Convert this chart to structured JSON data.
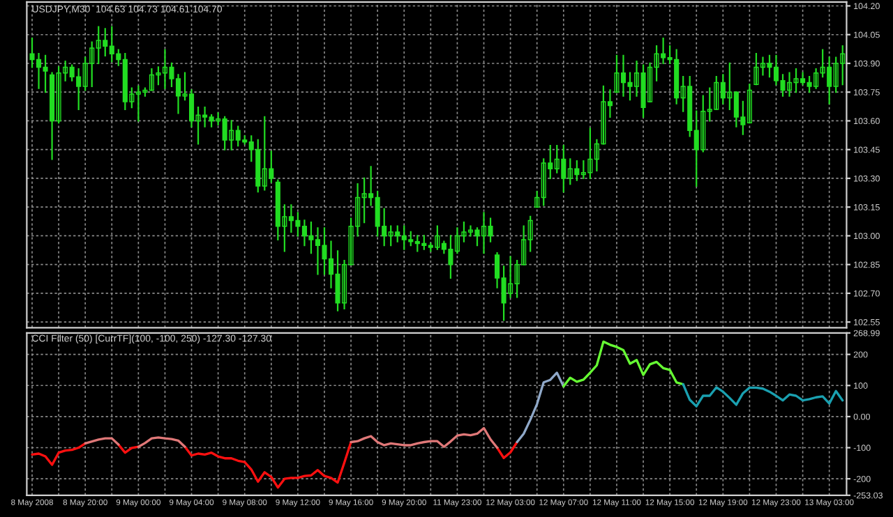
{
  "chart_data": [
    {
      "type": "candlestick",
      "title": "USDJPY,M30  104.63 104.73 104.61 104.70",
      "color": "#22dd22",
      "grid": true,
      "tick_labels": "y",
      "categories": [
        null,
        null,
        null,
        null,
        null,
        null,
        null,
        null,
        null,
        null,
        null,
        null,
        null,
        null,
        null,
        null,
        null,
        null,
        null,
        null,
        null,
        null,
        null,
        null,
        null,
        null,
        null,
        null,
        null,
        null,
        null,
        null,
        null,
        null,
        null,
        null,
        null,
        null,
        null,
        null,
        null,
        null,
        null,
        null,
        null,
        null,
        null,
        null,
        null,
        null,
        null,
        null,
        null,
        null,
        null,
        null,
        null,
        null,
        null,
        null,
        null,
        null,
        null,
        null,
        null,
        null,
        null,
        null,
        null,
        null,
        null,
        null,
        null,
        null,
        null,
        null,
        null,
        null,
        null,
        null,
        null,
        null,
        null,
        null,
        null,
        null,
        null,
        null,
        null,
        null,
        null,
        null,
        null,
        null,
        null,
        null,
        null,
        null,
        null,
        null,
        null,
        null,
        null,
        null,
        null,
        null,
        null,
        null,
        null,
        null,
        null,
        null,
        null,
        null,
        null,
        null,
        null,
        null,
        null,
        null,
        null,
        null,
        null
      ],
      "ylim": [
        102.52,
        104.22
      ],
      "yticks": [
        {
          "value": 104.2,
          "label": "104.20"
        },
        {
          "value": 104.05,
          "label": "104.05"
        },
        {
          "value": 103.9,
          "label": "103.90"
        },
        {
          "value": 103.75,
          "label": "103.75"
        },
        {
          "value": 103.6,
          "label": "103.60"
        },
        {
          "value": 103.45,
          "label": "103.45"
        },
        {
          "value": 103.3,
          "label": "103.30"
        },
        {
          "value": 103.15,
          "label": "103.15"
        },
        {
          "value": 103.0,
          "label": "103.00"
        },
        {
          "value": 102.85,
          "label": "102.85"
        },
        {
          "value": 102.7,
          "label": "102.70"
        },
        {
          "value": 102.55,
          "label": "102.55"
        }
      ],
      "ohlc": [
        [
          103.95,
          104.03,
          103.88,
          103.92
        ],
        [
          103.92,
          103.95,
          103.77,
          103.88
        ],
        [
          103.88,
          103.94,
          103.75,
          103.86
        ],
        [
          103.84,
          103.85,
          103.4,
          103.6
        ],
        [
          103.6,
          103.88,
          103.59,
          103.85
        ],
        [
          103.85,
          103.91,
          103.81,
          103.88
        ],
        [
          103.88,
          103.89,
          103.81,
          103.83
        ],
        [
          103.83,
          103.87,
          103.66,
          103.78
        ],
        [
          103.78,
          103.93,
          103.76,
          103.9
        ],
        [
          103.9,
          104.01,
          103.78,
          103.98
        ],
        [
          103.98,
          104.09,
          103.9,
          104.02
        ],
        [
          104.02,
          104.08,
          103.94,
          103.99
        ],
        [
          103.99,
          104.09,
          103.91,
          103.95
        ],
        [
          103.95,
          103.97,
          103.89,
          103.92
        ],
        [
          103.92,
          103.95,
          103.66,
          103.7
        ],
        [
          103.7,
          103.77,
          103.67,
          103.74
        ],
        [
          103.74,
          103.78,
          103.6,
          103.75
        ],
        [
          103.75,
          103.77,
          103.73,
          103.76
        ],
        [
          103.76,
          103.87,
          103.76,
          103.84
        ],
        [
          103.84,
          103.88,
          103.79,
          103.85
        ],
        [
          103.85,
          103.97,
          103.77,
          103.88
        ],
        [
          103.88,
          103.9,
          103.78,
          103.82
        ],
        [
          103.82,
          103.84,
          103.64,
          103.73
        ],
        [
          103.73,
          103.85,
          103.71,
          103.74
        ],
        [
          103.74,
          103.76,
          103.57,
          103.6
        ],
        [
          103.6,
          103.67,
          103.48,
          103.63
        ],
        [
          103.63,
          103.67,
          103.57,
          103.62
        ],
        [
          103.62,
          103.63,
          103.57,
          103.6
        ],
        [
          103.6,
          103.64,
          103.58,
          103.61
        ],
        [
          103.61,
          103.62,
          103.45,
          103.5
        ],
        [
          103.5,
          103.6,
          103.45,
          103.55
        ],
        [
          103.55,
          103.57,
          103.47,
          103.5
        ],
        [
          103.5,
          103.52,
          103.48,
          103.49
        ],
        [
          103.49,
          103.52,
          103.39,
          103.45
        ],
        [
          103.45,
          103.5,
          103.23,
          103.26
        ],
        [
          103.26,
          103.62,
          103.24,
          103.35
        ],
        [
          103.35,
          103.44,
          103.28,
          103.3
        ],
        [
          103.28,
          103.29,
          102.98,
          103.05
        ],
        [
          103.05,
          103.16,
          102.92,
          103.1
        ],
        [
          103.1,
          103.16,
          103.02,
          103.08
        ],
        [
          103.08,
          103.12,
          103.0,
          103.05
        ],
        [
          103.05,
          103.08,
          102.95,
          103.0
        ],
        [
          103.0,
          103.07,
          102.91,
          102.98
        ],
        [
          102.98,
          103.04,
          102.8,
          102.95
        ],
        [
          102.95,
          103.04,
          102.8,
          102.88
        ],
        [
          102.88,
          102.97,
          102.73,
          102.8
        ],
        [
          102.8,
          102.92,
          102.61,
          102.65
        ],
        [
          102.65,
          102.87,
          102.62,
          102.85
        ],
        [
          102.85,
          103.09,
          102.85,
          103.05
        ],
        [
          103.05,
          103.27,
          103.0,
          103.2
        ],
        [
          103.2,
          103.3,
          103.07,
          103.22
        ],
        [
          103.22,
          103.36,
          103.16,
          103.2
        ],
        [
          103.2,
          103.23,
          103.0,
          103.05
        ],
        [
          103.05,
          103.14,
          102.95,
          103.0
        ],
        [
          103.0,
          103.05,
          102.95,
          103.02
        ],
        [
          103.02,
          103.05,
          102.97,
          103.0
        ],
        [
          103.0,
          103.05,
          102.93,
          102.98
        ],
        [
          102.98,
          103.02,
          102.95,
          102.97
        ],
        [
          102.97,
          103.0,
          102.92,
          102.96
        ],
        [
          102.96,
          103.0,
          102.93,
          102.95
        ],
        [
          102.95,
          102.96,
          102.92,
          102.94
        ],
        [
          102.94,
          103.05,
          102.93,
          103.0
        ],
        [
          102.96,
          102.97,
          102.91,
          102.93
        ],
        [
          102.93,
          103.0,
          102.78,
          102.85
        ],
        [
          102.92,
          103.04,
          102.91,
          103.0
        ],
        [
          103.0,
          103.07,
          102.97,
          103.02
        ],
        [
          103.02,
          103.05,
          103.0,
          103.03
        ],
        [
          103.03,
          103.04,
          102.95,
          103.0
        ],
        [
          103.0,
          103.12,
          102.91,
          103.05
        ],
        [
          103.05,
          103.09,
          102.97,
          103.0
        ],
        [
          102.9,
          102.91,
          102.73,
          102.78
        ],
        [
          102.78,
          102.84,
          102.56,
          102.65
        ],
        [
          102.7,
          102.89,
          102.68,
          102.75
        ],
        [
          102.75,
          102.87,
          102.68,
          102.85
        ],
        [
          102.85,
          103.05,
          102.85,
          102.98
        ],
        [
          102.98,
          103.1,
          102.92,
          103.08
        ],
        [
          103.15,
          103.23,
          103.15,
          103.2
        ],
        [
          103.2,
          103.4,
          103.16,
          103.38
        ],
        [
          103.38,
          103.47,
          103.3,
          103.35
        ],
        [
          103.35,
          103.47,
          103.33,
          103.4
        ],
        [
          103.4,
          103.47,
          103.23,
          103.3
        ],
        [
          103.3,
          103.4,
          103.27,
          103.35
        ],
        [
          103.35,
          103.39,
          103.29,
          103.32
        ],
        [
          103.32,
          103.39,
          103.3,
          103.33
        ],
        [
          103.33,
          103.56,
          103.3,
          103.4
        ],
        [
          103.4,
          103.5,
          103.34,
          103.48
        ],
        [
          103.48,
          103.78,
          103.48,
          103.7
        ],
        [
          103.7,
          103.76,
          103.62,
          103.68
        ],
        [
          103.75,
          103.94,
          103.75,
          103.85
        ],
        [
          103.85,
          103.94,
          103.73,
          103.8
        ],
        [
          103.8,
          103.85,
          103.71,
          103.78
        ],
        [
          103.78,
          103.91,
          103.73,
          103.85
        ],
        [
          103.85,
          103.89,
          103.62,
          103.67
        ],
        [
          103.7,
          103.9,
          103.7,
          103.88
        ],
        [
          103.88,
          103.99,
          103.81,
          103.95
        ],
        [
          103.95,
          104.03,
          103.9,
          103.93
        ],
        [
          103.93,
          103.99,
          103.9,
          103.92
        ],
        [
          103.92,
          103.97,
          103.69,
          103.72
        ],
        [
          103.72,
          103.83,
          103.65,
          103.78
        ],
        [
          103.78,
          103.83,
          103.52,
          103.55
        ],
        [
          103.55,
          103.65,
          103.26,
          103.45
        ],
        [
          103.45,
          103.73,
          103.44,
          103.65
        ],
        [
          103.65,
          103.77,
          103.6,
          103.66
        ],
        [
          103.66,
          103.83,
          103.66,
          103.8
        ],
        [
          103.8,
          103.84,
          103.69,
          103.72
        ],
        [
          103.72,
          103.9,
          103.66,
          103.75
        ],
        [
          103.75,
          103.75,
          103.57,
          103.62
        ],
        [
          103.62,
          103.7,
          103.53,
          103.58
        ],
        [
          103.59,
          103.79,
          103.59,
          103.76
        ],
        [
          103.79,
          103.95,
          103.79,
          103.88
        ],
        [
          103.88,
          103.93,
          103.84,
          103.9
        ],
        [
          103.9,
          103.94,
          103.83,
          103.88
        ],
        [
          103.88,
          103.94,
          103.79,
          103.81
        ],
        [
          103.81,
          103.84,
          103.73,
          103.76
        ],
        [
          103.76,
          103.85,
          103.73,
          103.8
        ],
        [
          103.8,
          103.87,
          103.75,
          103.82
        ],
        [
          103.82,
          103.85,
          103.79,
          103.8
        ],
        [
          103.8,
          103.83,
          103.75,
          103.78
        ],
        [
          103.78,
          103.87,
          103.77,
          103.85
        ],
        [
          103.85,
          103.97,
          103.83,
          103.88
        ],
        [
          103.88,
          103.93,
          103.69,
          103.78
        ],
        [
          103.78,
          103.93,
          103.75,
          103.9
        ],
        [
          103.9,
          103.99,
          103.79,
          103.95
        ]
      ]
    },
    {
      "type": "line",
      "title": "CCI Filter (50) [CurrTF](100, -100, 250) -127.30 -127.30",
      "grid": true,
      "categories": [
        "8 May 2008",
        null,
        null,
        null,
        null,
        null,
        null,
        null,
        "8 May 20:00",
        null,
        null,
        null,
        null,
        null,
        null,
        null,
        "9 May 00:00",
        null,
        null,
        null,
        null,
        null,
        null,
        null,
        "9 May 04:00",
        null,
        null,
        null,
        null,
        null,
        null,
        null,
        "9 May 08:00",
        null,
        null,
        null,
        null,
        null,
        null,
        null,
        "9 May 12:00",
        null,
        null,
        null,
        null,
        null,
        null,
        null,
        "9 May 16:00",
        null,
        null,
        null,
        null,
        null,
        null,
        null,
        "9 May 20:00",
        null,
        null,
        null,
        null,
        null,
        null,
        null,
        "11 May 23:00",
        null,
        null,
        null,
        null,
        null,
        null,
        null,
        "12 May 03:00",
        null,
        null,
        null,
        null,
        null,
        null,
        null,
        "12 May 07:00",
        null,
        null,
        null,
        null,
        null,
        null,
        null,
        "12 May 11:00",
        null,
        null,
        null,
        null,
        null,
        null,
        null,
        "12 May 15:00",
        null,
        null,
        null,
        null,
        null,
        null,
        null,
        "12 May 19:00",
        null,
        null,
        null,
        null,
        null,
        null,
        null,
        "12 May 23:00",
        null,
        null,
        null,
        null,
        null,
        null,
        null,
        "13 May 03:00",
        null,
        null
      ],
      "ylim": [
        -253.03,
        268.99
      ],
      "yticks": [
        {
          "value": 268.99,
          "label": "268.99"
        },
        200,
        100,
        {
          "value": 0,
          "label": "0.00"
        },
        {
          "value": -100,
          "label": "-100"
        },
        {
          "value": -200,
          "label": "-200"
        },
        {
          "value": -253.03,
          "label": "-253.03"
        }
      ],
      "series": [
        {
          "color": "#ff1010",
          "values": [
            -122,
            -119,
            -128,
            -155,
            -116,
            -109,
            -107,
            -100,
            -86,
            null,
            null,
            null,
            null,
            -90,
            -116,
            -101,
            -97,
            null,
            null,
            null,
            null,
            null,
            null,
            -97,
            -125,
            -119,
            -122,
            -116,
            -128,
            -134,
            -134,
            -142,
            -146,
            -170,
            -209,
            -179,
            -194,
            -228,
            -200,
            -197,
            -197,
            -191,
            -189,
            -172,
            -191,
            -197,
            -212,
            -148,
            -82,
            null,
            null,
            null,
            null,
            null,
            null,
            null,
            null,
            null,
            null,
            null,
            null,
            null,
            null,
            null,
            null,
            null,
            null,
            null,
            null,
            null,
            -100,
            -133,
            -115,
            -82,
            null,
            null,
            null,
            null,
            null,
            null,
            null,
            null,
            null,
            null,
            null,
            null,
            null,
            null,
            null,
            null,
            null,
            null,
            null,
            null,
            null,
            null,
            null,
            null,
            null,
            null,
            null,
            null,
            null,
            null,
            null,
            null,
            null,
            null,
            null,
            null,
            null,
            null,
            null,
            null,
            null,
            null,
            null,
            null,
            null,
            null,
            null,
            null,
            null
          ]
        },
        {
          "color": "#e07878",
          "values": [
            null,
            null,
            null,
            null,
            null,
            null,
            null,
            null,
            -86,
            -80,
            -74,
            -70,
            -70,
            -90,
            null,
            null,
            -97,
            -85,
            -70,
            -67,
            -70,
            -72,
            -77,
            -97,
            null,
            null,
            null,
            null,
            null,
            null,
            null,
            null,
            null,
            null,
            null,
            null,
            null,
            null,
            null,
            null,
            null,
            null,
            null,
            null,
            null,
            null,
            null,
            null,
            -82,
            -79,
            -70,
            -63,
            -82,
            -92,
            -86,
            -89,
            -92,
            -92,
            -86,
            -82,
            -79,
            -79,
            -97,
            -80,
            -61,
            -57,
            -60,
            -55,
            -37,
            -73,
            -100,
            null,
            null,
            null,
            null,
            null,
            null,
            null,
            null,
            null,
            null,
            null,
            null,
            null,
            null,
            null,
            null,
            null,
            null,
            null,
            null,
            null,
            null,
            null,
            null,
            null,
            null,
            null,
            null,
            null,
            null,
            null,
            null,
            null,
            null,
            null,
            null,
            null,
            null,
            null,
            null,
            null,
            null,
            null,
            null,
            null,
            null,
            null,
            null,
            null,
            null,
            null,
            null
          ]
        },
        {
          "color": "#8fa8c8",
          "values": [
            null,
            null,
            null,
            null,
            null,
            null,
            null,
            null,
            null,
            null,
            null,
            null,
            null,
            null,
            null,
            null,
            null,
            null,
            null,
            null,
            null,
            null,
            null,
            null,
            null,
            null,
            null,
            null,
            null,
            null,
            null,
            null,
            null,
            null,
            null,
            null,
            null,
            null,
            null,
            null,
            null,
            null,
            null,
            null,
            null,
            null,
            null,
            null,
            null,
            null,
            null,
            null,
            null,
            null,
            null,
            null,
            null,
            null,
            null,
            null,
            null,
            null,
            null,
            null,
            null,
            null,
            null,
            null,
            null,
            null,
            null,
            null,
            null,
            -82,
            -55,
            -10,
            40,
            110,
            118,
            141,
            97,
            null,
            null,
            null,
            null,
            null,
            null,
            null,
            null,
            null,
            null,
            null,
            null,
            null,
            null,
            null,
            null,
            null,
            null,
            null,
            null,
            null,
            null,
            null,
            null,
            null,
            null,
            null,
            null,
            null,
            null,
            null,
            null,
            null,
            null,
            null,
            null,
            null,
            null,
            null,
            null,
            null,
            null
          ]
        },
        {
          "color": "#66ff33",
          "values": [
            null,
            null,
            null,
            null,
            null,
            null,
            null,
            null,
            null,
            null,
            null,
            null,
            null,
            null,
            null,
            null,
            null,
            null,
            null,
            null,
            null,
            null,
            null,
            null,
            null,
            null,
            null,
            null,
            null,
            null,
            null,
            null,
            null,
            null,
            null,
            null,
            null,
            null,
            null,
            null,
            null,
            null,
            null,
            null,
            null,
            null,
            null,
            null,
            null,
            null,
            null,
            null,
            null,
            null,
            null,
            null,
            null,
            null,
            null,
            null,
            null,
            null,
            null,
            null,
            null,
            null,
            null,
            null,
            null,
            null,
            null,
            null,
            null,
            null,
            null,
            null,
            null,
            null,
            null,
            null,
            97,
            125,
            112,
            119,
            141,
            165,
            241,
            231,
            224,
            214,
            170,
            182,
            134,
            168,
            176,
            156,
            150,
            110,
            104,
            null,
            null,
            null,
            null,
            null,
            null,
            null,
            null,
            null,
            null,
            null,
            null,
            null,
            null,
            null,
            null,
            null,
            null,
            null,
            null,
            null,
            null,
            null,
            null
          ]
        },
        {
          "color": "#1aa0b0",
          "values": [
            null,
            null,
            null,
            null,
            null,
            null,
            null,
            null,
            null,
            null,
            null,
            null,
            null,
            null,
            null,
            null,
            null,
            null,
            null,
            null,
            null,
            null,
            null,
            null,
            null,
            null,
            null,
            null,
            null,
            null,
            null,
            null,
            null,
            null,
            null,
            null,
            null,
            null,
            null,
            null,
            null,
            null,
            null,
            null,
            null,
            null,
            null,
            null,
            null,
            null,
            null,
            null,
            null,
            null,
            null,
            null,
            null,
            null,
            null,
            null,
            null,
            null,
            null,
            null,
            null,
            null,
            null,
            null,
            null,
            null,
            null,
            null,
            null,
            null,
            null,
            null,
            null,
            null,
            null,
            null,
            null,
            null,
            null,
            null,
            null,
            null,
            null,
            null,
            null,
            null,
            null,
            null,
            null,
            null,
            null,
            null,
            null,
            null,
            104,
            54,
            33,
            67,
            67,
            94,
            80,
            60,
            38,
            75,
            93,
            93,
            90,
            80,
            67,
            52,
            71,
            67,
            52,
            56,
            62,
            65,
            42,
            82,
            52
          ]
        }
      ]
    }
  ]
}
